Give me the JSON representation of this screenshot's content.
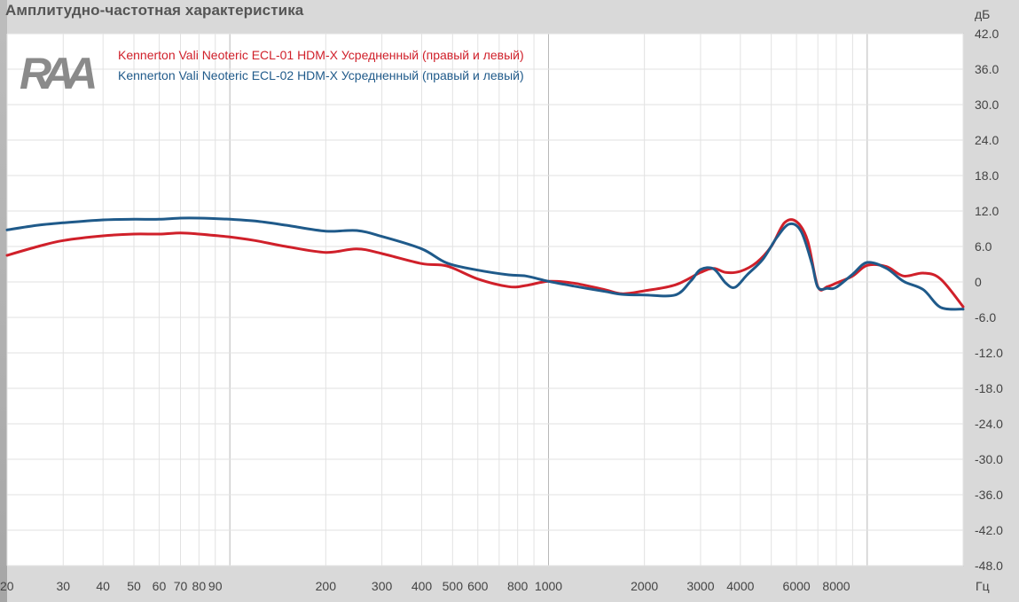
{
  "title": "Амплитудно-частотная характеристика",
  "logo_text": "RAA",
  "colors": {
    "series1": "#d0202a",
    "series2": "#1f5a8a",
    "grid_major": "#b8b8b8",
    "grid_minor": "#e2e2e2"
  },
  "chart_data": {
    "type": "line",
    "title": "Амплитудно-частотная характеристика",
    "xscale": "log",
    "xlim": [
      20,
      20000
    ],
    "ylim": [
      -48,
      42
    ],
    "ylabel": "дБ",
    "xlabel": "Гц",
    "grid": true,
    "legend_placement": "top-left",
    "y_ticks": [
      {
        "v": 42,
        "label": "42.0"
      },
      {
        "v": 36,
        "label": "36.0"
      },
      {
        "v": 30,
        "label": "30.0"
      },
      {
        "v": 24,
        "label": "24.0"
      },
      {
        "v": 18,
        "label": "18.0"
      },
      {
        "v": 12,
        "label": "12.0"
      },
      {
        "v": 6,
        "label": "6.0"
      },
      {
        "v": 0,
        "label": "0"
      },
      {
        "v": -6,
        "label": "-6.0"
      },
      {
        "v": -12,
        "label": "-12.0"
      },
      {
        "v": -18,
        "label": "-18.0"
      },
      {
        "v": -24,
        "label": "-24.0"
      },
      {
        "v": -30,
        "label": "-30.0"
      },
      {
        "v": -36,
        "label": "-36.0"
      },
      {
        "v": -42,
        "label": "-42.0"
      },
      {
        "v": -48,
        "label": "-48.0"
      }
    ],
    "x_ticks": [
      {
        "v": 20,
        "label": "20"
      },
      {
        "v": 30,
        "label": "30"
      },
      {
        "v": 40,
        "label": "40"
      },
      {
        "v": 50,
        "label": "50"
      },
      {
        "v": 60,
        "label": "60"
      },
      {
        "v": 70,
        "label": "70"
      },
      {
        "v": 80,
        "label": "80"
      },
      {
        "v": 90,
        "label": "90"
      },
      {
        "v": 200,
        "label": "200"
      },
      {
        "v": 300,
        "label": "300"
      },
      {
        "v": 400,
        "label": "400"
      },
      {
        "v": 500,
        "label": "500"
      },
      {
        "v": 600,
        "label": "600"
      },
      {
        "v": 800,
        "label": "800"
      },
      {
        "v": 1000,
        "label": "1000"
      },
      {
        "v": 2000,
        "label": "2000"
      },
      {
        "v": 3000,
        "label": "3000"
      },
      {
        "v": 4000,
        "label": "4000"
      },
      {
        "v": 6000,
        "label": "6000"
      },
      {
        "v": 8000,
        "label": "8000"
      }
    ],
    "series": [
      {
        "name": "Kennerton Vali Neoteric ECL-01 HDM-X Усредненный (правый и левый)",
        "color": "#d0202a",
        "points": [
          [
            20,
            4.5
          ],
          [
            25,
            6.0
          ],
          [
            30,
            7.0
          ],
          [
            40,
            7.8
          ],
          [
            50,
            8.1
          ],
          [
            60,
            8.1
          ],
          [
            70,
            8.3
          ],
          [
            80,
            8.1
          ],
          [
            100,
            7.6
          ],
          [
            120,
            7.0
          ],
          [
            150,
            6.0
          ],
          [
            200,
            5.0
          ],
          [
            250,
            5.6
          ],
          [
            300,
            4.8
          ],
          [
            400,
            3.1
          ],
          [
            480,
            2.7
          ],
          [
            600,
            0.5
          ],
          [
            750,
            -0.8
          ],
          [
            850,
            -0.6
          ],
          [
            1000,
            0.1
          ],
          [
            1200,
            -0.2
          ],
          [
            1500,
            -1.3
          ],
          [
            1700,
            -2.0
          ],
          [
            2000,
            -1.5
          ],
          [
            2500,
            -0.5
          ],
          [
            3000,
            1.6
          ],
          [
            3300,
            2.3
          ],
          [
            3600,
            1.6
          ],
          [
            4000,
            1.8
          ],
          [
            4500,
            3.3
          ],
          [
            5000,
            6.0
          ],
          [
            5500,
            10.0
          ],
          [
            6000,
            10.2
          ],
          [
            6500,
            7.0
          ],
          [
            7000,
            -0.8
          ],
          [
            7500,
            -0.8
          ],
          [
            8000,
            -0.2
          ],
          [
            9000,
            1.0
          ],
          [
            10000,
            2.8
          ],
          [
            11500,
            2.6
          ],
          [
            13000,
            1.0
          ],
          [
            15000,
            1.5
          ],
          [
            17000,
            0.5
          ],
          [
            20000,
            -4.2
          ]
        ]
      },
      {
        "name": "Kennerton Vali Neoteric ECL-02 HDM-X Усредненный (правый и левый)",
        "color": "#1f5a8a",
        "points": [
          [
            20,
            8.8
          ],
          [
            25,
            9.6
          ],
          [
            30,
            10.0
          ],
          [
            40,
            10.5
          ],
          [
            50,
            10.6
          ],
          [
            60,
            10.6
          ],
          [
            70,
            10.8
          ],
          [
            80,
            10.8
          ],
          [
            100,
            10.6
          ],
          [
            120,
            10.3
          ],
          [
            150,
            9.6
          ],
          [
            200,
            8.6
          ],
          [
            250,
            8.7
          ],
          [
            300,
            7.7
          ],
          [
            400,
            5.6
          ],
          [
            480,
            3.2
          ],
          [
            600,
            2.0
          ],
          [
            750,
            1.2
          ],
          [
            850,
            1.0
          ],
          [
            1000,
            0.1
          ],
          [
            1200,
            -0.7
          ],
          [
            1500,
            -1.6
          ],
          [
            1700,
            -2.1
          ],
          [
            2000,
            -2.2
          ],
          [
            2500,
            -2.2
          ],
          [
            2800,
            0.2
          ],
          [
            3000,
            2.1
          ],
          [
            3300,
            2.2
          ],
          [
            3600,
            -0.2
          ],
          [
            3850,
            -0.9
          ],
          [
            4200,
            1.2
          ],
          [
            4700,
            3.8
          ],
          [
            5200,
            7.5
          ],
          [
            5700,
            9.8
          ],
          [
            6200,
            8.6
          ],
          [
            6700,
            3.2
          ],
          [
            7000,
            -0.9
          ],
          [
            7500,
            -1.1
          ],
          [
            8000,
            -0.9
          ],
          [
            9000,
            1.3
          ],
          [
            10000,
            3.3
          ],
          [
            11500,
            2.3
          ],
          [
            13000,
            0.1
          ],
          [
            15000,
            -1.3
          ],
          [
            17000,
            -4.3
          ],
          [
            20000,
            -4.6
          ]
        ]
      }
    ]
  }
}
